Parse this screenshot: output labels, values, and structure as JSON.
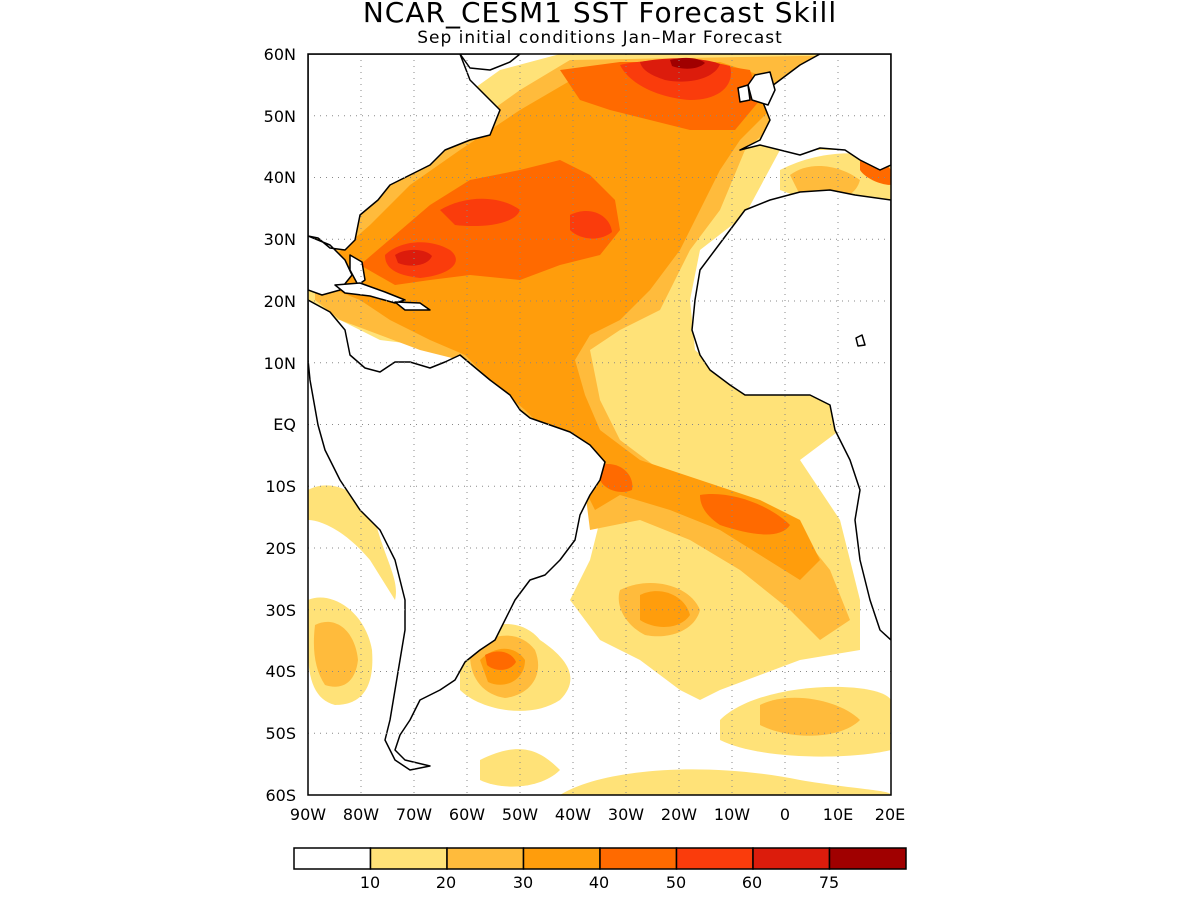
{
  "title": "NCAR_CESM1  SST Forecast Skill",
  "subtitle": "Sep initial conditions  Jan–Mar Forecast",
  "lat_labels": [
    "60N",
    "50N",
    "40N",
    "30N",
    "20N",
    "10N",
    "EQ",
    "10S",
    "20S",
    "30S",
    "40S",
    "50S",
    "60S"
  ],
  "lon_labels": [
    "90W",
    "80W",
    "70W",
    "60W",
    "50W",
    "40W",
    "30W",
    "20W",
    "10W",
    "0",
    "10E",
    "20E"
  ],
  "colorbar": {
    "labels": [
      "10",
      "20",
      "30",
      "40",
      "50",
      "60",
      "75"
    ],
    "colors": [
      "#ffffff",
      "#ffe278",
      "#ffbb3c",
      "#ff9d0c",
      "#ff6a00",
      "#fa3c0c",
      "#dc1c0c",
      "#a00000"
    ]
  },
  "map": {
    "region": "Atlantic Ocean",
    "lon_range": [
      -90,
      20
    ],
    "lat_range": [
      -60,
      60
    ],
    "grid": "dotted every 10 degrees"
  }
}
